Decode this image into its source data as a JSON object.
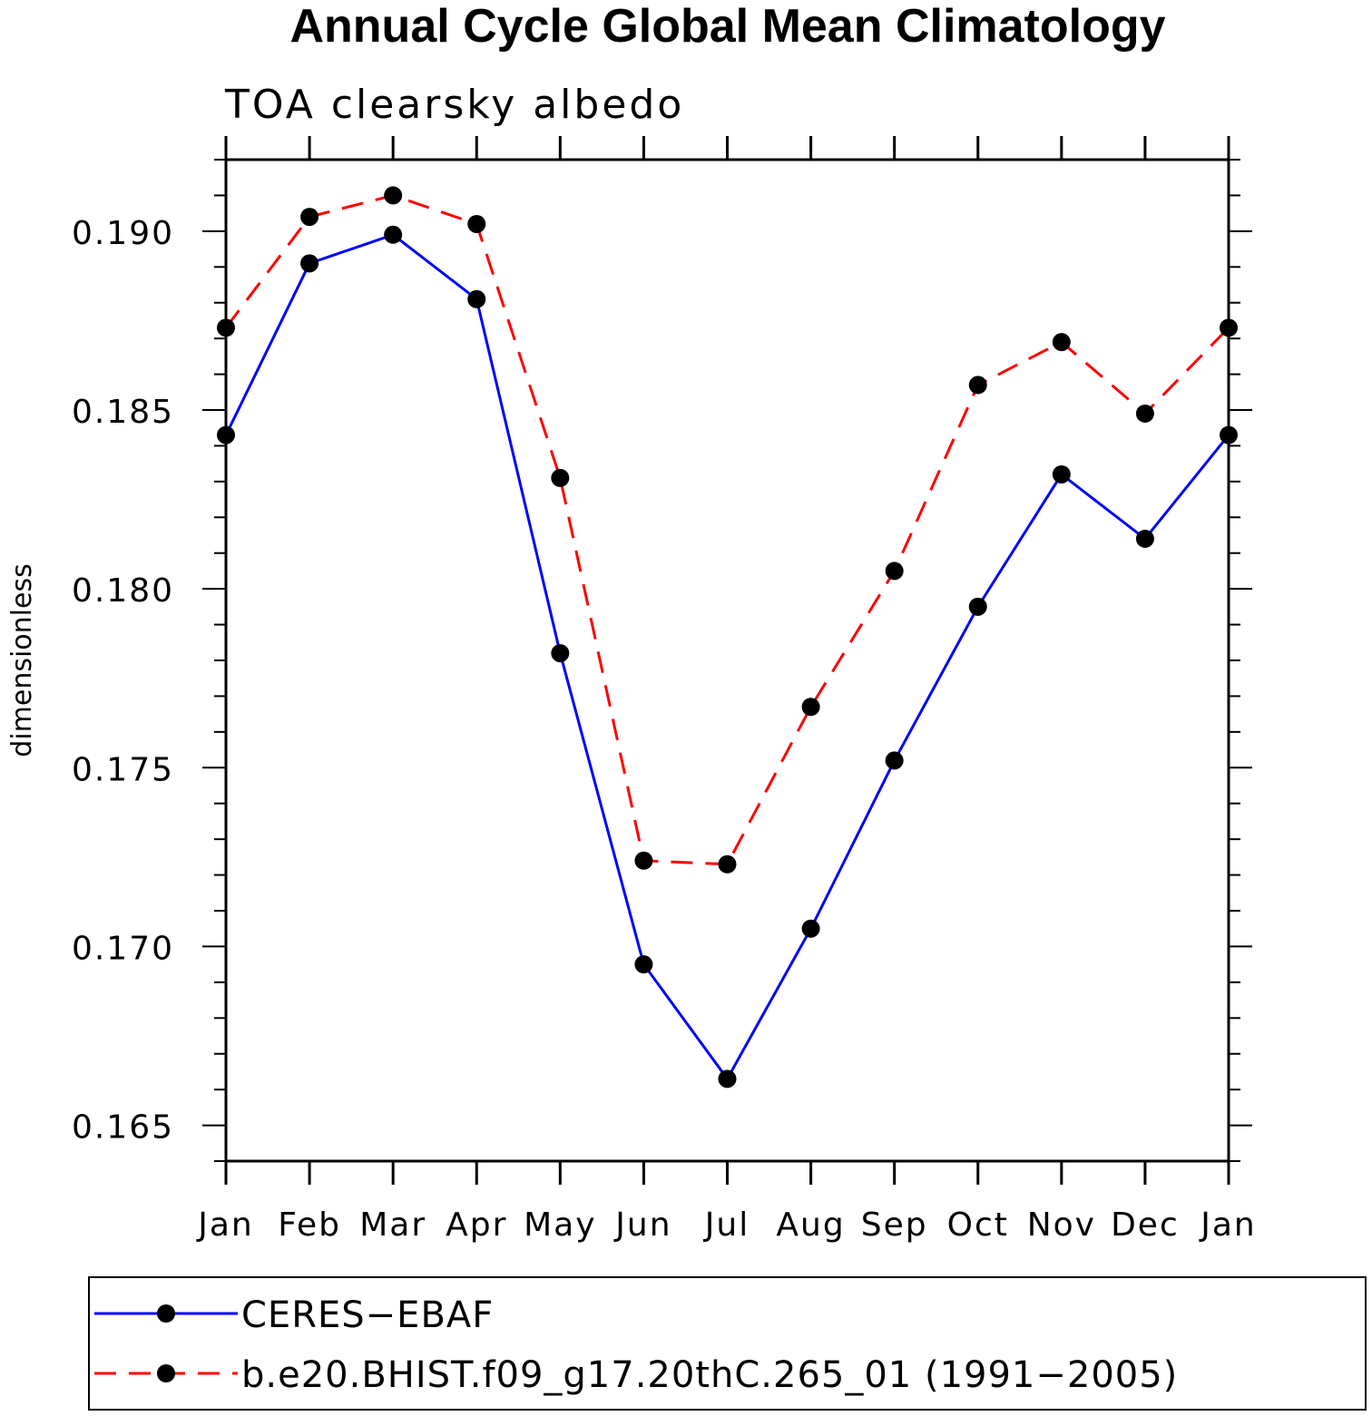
{
  "chart_data": {
    "type": "line",
    "title": "Annual Cycle Global Mean Climatology",
    "subtitle": "TOA clearsky albedo",
    "xlabel": "",
    "ylabel": "dimensionless",
    "categories": [
      "Jan",
      "Feb",
      "Mar",
      "Apr",
      "May",
      "Jun",
      "Jul",
      "Aug",
      "Sep",
      "Oct",
      "Nov",
      "Dec",
      "Jan"
    ],
    "ylim": [
      0.164,
      0.192
    ],
    "yticks": [
      0.165,
      0.17,
      0.175,
      0.18,
      0.185,
      0.19
    ],
    "ytick_labels": [
      "0.165",
      "0.170",
      "0.175",
      "0.180",
      "0.185",
      "0.190"
    ],
    "series": [
      {
        "name": "CERES-EBAF",
        "color": "#0000ff",
        "dash": "solid",
        "values": [
          0.1843,
          0.1891,
          0.1899,
          0.1881,
          0.1782,
          0.1695,
          0.1663,
          0.1705,
          0.1752,
          0.1795,
          0.1832,
          0.1814,
          0.1843
        ]
      },
      {
        "name": "b.e20.BHIST.f09_g17.20thC.265_01 (1991-2005)",
        "color": "#ff0000",
        "dash": "dashed",
        "values": [
          0.1873,
          0.1904,
          0.191,
          0.1902,
          0.1831,
          0.1724,
          0.1723,
          0.1767,
          0.1805,
          0.1857,
          0.1869,
          0.1849,
          0.1873
        ]
      }
    ],
    "legend": {
      "position": "bottom",
      "entries": [
        "CERES−EBAF",
        "b.e20.BHIST.f09_g17.20thC.265_01 (1991−2005)"
      ]
    },
    "grid": false
  }
}
